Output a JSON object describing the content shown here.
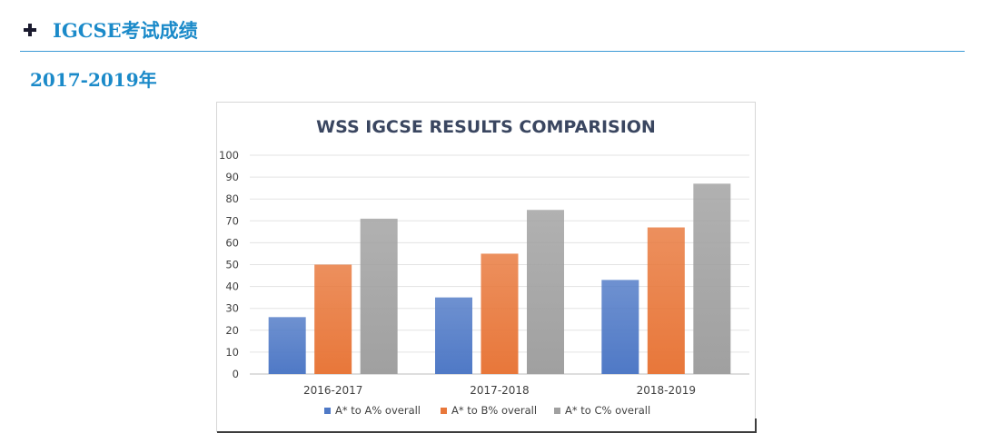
{
  "section": {
    "toggle_icon": "plus-icon",
    "title": "IGCSE考试成绩"
  },
  "subsection": {
    "title": "2017-2019年"
  },
  "colors": {
    "accent": "#1b8ac9",
    "series_blue": "#4f79c6",
    "series_orange": "#e8773a",
    "series_gray": "#a0a0a0"
  },
  "chart_data": {
    "type": "bar",
    "title": "WSS IGCSE RESULTS COMPARISION",
    "categories": [
      "2016-2017",
      "2017-2018",
      "2018-2019"
    ],
    "series": [
      {
        "name": "A* to A% overall",
        "values": [
          26,
          35,
          43
        ],
        "color": "#4f79c6"
      },
      {
        "name": "A* to B% overall",
        "values": [
          50,
          55,
          67
        ],
        "color": "#e8773a"
      },
      {
        "name": "A* to C% overall",
        "values": [
          71,
          75,
          87
        ],
        "color": "#a0a0a0"
      }
    ],
    "ylim": [
      0,
      100
    ],
    "yticks": [
      0,
      10,
      20,
      30,
      40,
      50,
      60,
      70,
      80,
      90,
      100
    ],
    "grid": true,
    "legend": "bottom"
  }
}
